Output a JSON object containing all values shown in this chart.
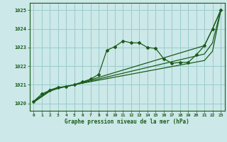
{
  "title": "Graphe pression niveau de la mer (hPa)",
  "bg_color": "#cce8e8",
  "grid_color": "#99cccc",
  "line_color": "#1a5c1a",
  "xlim": [
    -0.5,
    23.5
  ],
  "ylim": [
    1019.6,
    1025.4
  ],
  "yticks": [
    1020,
    1021,
    1022,
    1023,
    1024,
    1025
  ],
  "xticks": [
    0,
    1,
    2,
    3,
    4,
    5,
    6,
    7,
    8,
    9,
    10,
    11,
    12,
    13,
    14,
    15,
    16,
    17,
    18,
    19,
    20,
    21,
    22,
    23
  ],
  "lines": [
    {
      "x": [
        0,
        1,
        2,
        3,
        4,
        5,
        6,
        7,
        8,
        9,
        10,
        11,
        12,
        13,
        14,
        15,
        16,
        17,
        18,
        19,
        20,
        21,
        22,
        23
      ],
      "y": [
        1020.1,
        1020.5,
        1020.7,
        1020.85,
        1020.9,
        1021.0,
        1021.15,
        1021.3,
        1021.55,
        1022.85,
        1023.05,
        1023.35,
        1023.25,
        1023.25,
        1023.0,
        1022.95,
        1022.4,
        1022.15,
        1022.2,
        1022.2,
        1022.6,
        1023.1,
        1024.0,
        1025.0
      ]
    },
    {
      "x": [
        0,
        2,
        3,
        4,
        5,
        21,
        22,
        23
      ],
      "y": [
        1020.1,
        1020.7,
        1020.85,
        1020.9,
        1021.0,
        1023.1,
        1024.0,
        1025.0
      ]
    },
    {
      "x": [
        0,
        2,
        3,
        4,
        5,
        21,
        22,
        23
      ],
      "y": [
        1020.1,
        1020.7,
        1020.85,
        1020.9,
        1021.0,
        1022.65,
        1023.25,
        1025.0
      ]
    },
    {
      "x": [
        0,
        2,
        3,
        4,
        5,
        21,
        22,
        23
      ],
      "y": [
        1020.05,
        1020.65,
        1020.8,
        1020.9,
        1021.0,
        1022.3,
        1022.8,
        1024.95
      ]
    }
  ]
}
